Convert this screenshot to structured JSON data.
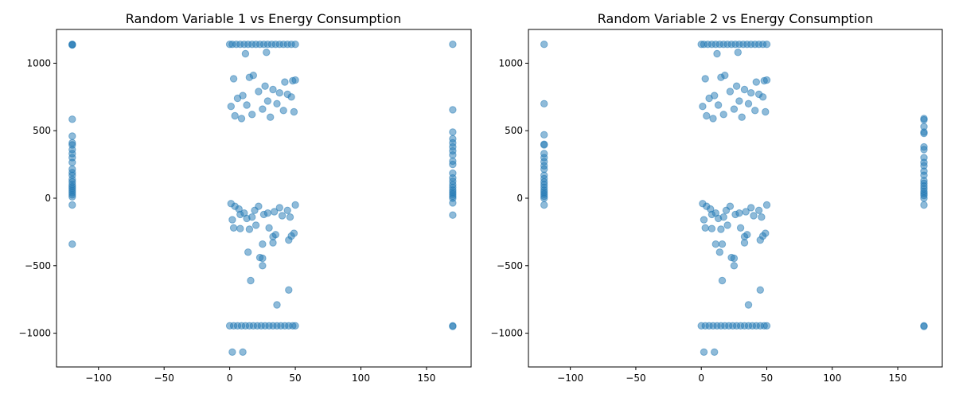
{
  "chart_data": [
    {
      "type": "scatter",
      "title": "Random Variable 1 vs Energy Consumption",
      "xlabel": "",
      "ylabel": "",
      "xlim": [
        -132,
        184
      ],
      "ylim": [
        -1250,
        1250
      ],
      "xticks": [
        -100,
        -50,
        0,
        50,
        100,
        150
      ],
      "xtick_labels": [
        "−100",
        "−50",
        "0",
        "50",
        "100",
        "150"
      ],
      "yticks": [
        -1000,
        -500,
        0,
        500,
        1000
      ],
      "ytick_labels": [
        "−1000",
        "−500",
        "0",
        "500",
        "1000"
      ],
      "grid": false,
      "marker_color": "#1f77b4",
      "marker_alpha": 0.5,
      "points": [
        [
          -120,
          1140
        ],
        [
          -120,
          1135
        ],
        [
          -120,
          1138
        ],
        [
          -120,
          585
        ],
        [
          -120,
          460
        ],
        [
          -120,
          410
        ],
        [
          -120,
          395
        ],
        [
          -120,
          360
        ],
        [
          -120,
          330
        ],
        [
          -120,
          300
        ],
        [
          -120,
          265
        ],
        [
          -120,
          215
        ],
        [
          -120,
          190
        ],
        [
          -120,
          170
        ],
        [
          -120,
          140
        ],
        [
          -120,
          120
        ],
        [
          -120,
          100
        ],
        [
          -120,
          85
        ],
        [
          -120,
          70
        ],
        [
          -120,
          55
        ],
        [
          -120,
          40
        ],
        [
          -120,
          25
        ],
        [
          -120,
          10
        ],
        [
          -120,
          -50
        ],
        [
          -120,
          -340
        ],
        [
          170,
          1140
        ],
        [
          170,
          655
        ],
        [
          170,
          490
        ],
        [
          170,
          440
        ],
        [
          170,
          410
        ],
        [
          170,
          380
        ],
        [
          170,
          350
        ],
        [
          170,
          320
        ],
        [
          170,
          275
        ],
        [
          170,
          250
        ],
        [
          170,
          185
        ],
        [
          170,
          150
        ],
        [
          170,
          125
        ],
        [
          170,
          100
        ],
        [
          170,
          80
        ],
        [
          170,
          60
        ],
        [
          170,
          45
        ],
        [
          170,
          30
        ],
        [
          170,
          15
        ],
        [
          170,
          0
        ],
        [
          170,
          -35
        ],
        [
          170,
          -125
        ],
        [
          170,
          -945
        ],
        [
          170,
          -950
        ],
        [
          0,
          1140
        ],
        [
          2,
          1140
        ],
        [
          5,
          1140
        ],
        [
          8,
          1140
        ],
        [
          11,
          1140
        ],
        [
          14,
          1140
        ],
        [
          17,
          1140
        ],
        [
          20,
          1140
        ],
        [
          23,
          1140
        ],
        [
          26,
          1140
        ],
        [
          29,
          1140
        ],
        [
          32,
          1140
        ],
        [
          35,
          1140
        ],
        [
          38,
          1140
        ],
        [
          41,
          1140
        ],
        [
          44,
          1140
        ],
        [
          47,
          1140
        ],
        [
          50,
          1140
        ],
        [
          12,
          1070
        ],
        [
          28,
          1080
        ],
        [
          0,
          -945
        ],
        [
          3,
          -945
        ],
        [
          6,
          -945
        ],
        [
          9,
          -945
        ],
        [
          12,
          -945
        ],
        [
          15,
          -945
        ],
        [
          18,
          -945
        ],
        [
          21,
          -945
        ],
        [
          24,
          -945
        ],
        [
          27,
          -945
        ],
        [
          30,
          -945
        ],
        [
          33,
          -945
        ],
        [
          36,
          -945
        ],
        [
          39,
          -945
        ],
        [
          42,
          -945
        ],
        [
          45,
          -945
        ],
        [
          48,
          -945
        ],
        [
          50,
          -945
        ],
        [
          2,
          -1140
        ],
        [
          10,
          -1140
        ],
        [
          3,
          885
        ],
        [
          18,
          910
        ],
        [
          15,
          895
        ],
        [
          42,
          860
        ],
        [
          48,
          870
        ],
        [
          50,
          875
        ],
        [
          27,
          830
        ],
        [
          33,
          805
        ],
        [
          10,
          760
        ],
        [
          38,
          780
        ],
        [
          44,
          770
        ],
        [
          6,
          740
        ],
        [
          22,
          790
        ],
        [
          47,
          750
        ],
        [
          1,
          680
        ],
        [
          29,
          720
        ],
        [
          36,
          700
        ],
        [
          13,
          690
        ],
        [
          49,
          640
        ],
        [
          4,
          610
        ],
        [
          25,
          660
        ],
        [
          41,
          650
        ],
        [
          9,
          590
        ],
        [
          31,
          600
        ],
        [
          17,
          620
        ],
        [
          20,
          -200
        ],
        [
          3,
          -220
        ],
        [
          8,
          -225
        ],
        [
          15,
          -230
        ],
        [
          30,
          -220
        ],
        [
          49,
          -260
        ],
        [
          47,
          -280
        ],
        [
          35,
          -270
        ],
        [
          33,
          -285
        ],
        [
          45,
          -310
        ],
        [
          33,
          -330
        ],
        [
          25,
          -340
        ],
        [
          14,
          -400
        ],
        [
          23,
          -440
        ],
        [
          25,
          -445
        ],
        [
          25,
          -500
        ],
        [
          16,
          -610
        ],
        [
          45,
          -680
        ],
        [
          36,
          -790
        ],
        [
          1,
          -40
        ],
        [
          4,
          -60
        ],
        [
          7,
          -80
        ],
        [
          11,
          -110
        ],
        [
          19,
          -90
        ],
        [
          26,
          -120
        ],
        [
          34,
          -100
        ],
        [
          40,
          -130
        ],
        [
          46,
          -140
        ],
        [
          2,
          -160
        ],
        [
          13,
          -150
        ],
        [
          29,
          -110
        ],
        [
          38,
          -70
        ],
        [
          50,
          -50
        ],
        [
          8,
          -120
        ],
        [
          22,
          -60
        ],
        [
          44,
          -90
        ],
        [
          17,
          -140
        ]
      ]
    },
    {
      "type": "scatter",
      "title": "Random Variable 2 vs Energy Consumption",
      "xlabel": "",
      "ylabel": "",
      "xlim": [
        -132,
        184
      ],
      "ylim": [
        -1250,
        1250
      ],
      "xticks": [
        -100,
        -50,
        0,
        50,
        100,
        150
      ],
      "xtick_labels": [
        "−100",
        "−50",
        "0",
        "50",
        "100",
        "150"
      ],
      "yticks": [
        -1000,
        -500,
        0,
        500,
        1000
      ],
      "ytick_labels": [
        "−1000",
        "−500",
        "0",
        "500",
        "1000"
      ],
      "grid": false,
      "marker_color": "#1f77b4",
      "marker_alpha": 0.5,
      "points": [
        [
          -120,
          1140
        ],
        [
          -120,
          700
        ],
        [
          -120,
          470
        ],
        [
          -120,
          400
        ],
        [
          -120,
          395
        ],
        [
          -120,
          330
        ],
        [
          -120,
          300
        ],
        [
          -120,
          270
        ],
        [
          -120,
          240
        ],
        [
          -120,
          215
        ],
        [
          -120,
          170
        ],
        [
          -120,
          145
        ],
        [
          -120,
          120
        ],
        [
          -120,
          100
        ],
        [
          -120,
          80
        ],
        [
          -120,
          60
        ],
        [
          -120,
          45
        ],
        [
          -120,
          30
        ],
        [
          -120,
          15
        ],
        [
          -120,
          0
        ],
        [
          -120,
          -50
        ],
        [
          170,
          590
        ],
        [
          170,
          580
        ],
        [
          170,
          530
        ],
        [
          170,
          490
        ],
        [
          170,
          480
        ],
        [
          170,
          380
        ],
        [
          170,
          360
        ],
        [
          170,
          300
        ],
        [
          170,
          265
        ],
        [
          170,
          240
        ],
        [
          170,
          200
        ],
        [
          170,
          170
        ],
        [
          170,
          130
        ],
        [
          170,
          110
        ],
        [
          170,
          90
        ],
        [
          170,
          70
        ],
        [
          170,
          50
        ],
        [
          170,
          35
        ],
        [
          170,
          20
        ],
        [
          170,
          0
        ],
        [
          170,
          -50
        ],
        [
          170,
          -945
        ],
        [
          170,
          -950
        ],
        [
          0,
          1140
        ],
        [
          2,
          1140
        ],
        [
          5,
          1140
        ],
        [
          8,
          1140
        ],
        [
          11,
          1140
        ],
        [
          14,
          1140
        ],
        [
          17,
          1140
        ],
        [
          20,
          1140
        ],
        [
          23,
          1140
        ],
        [
          26,
          1140
        ],
        [
          29,
          1140
        ],
        [
          32,
          1140
        ],
        [
          35,
          1140
        ],
        [
          38,
          1140
        ],
        [
          41,
          1140
        ],
        [
          44,
          1140
        ],
        [
          47,
          1140
        ],
        [
          50,
          1140
        ],
        [
          12,
          1070
        ],
        [
          28,
          1080
        ],
        [
          0,
          -945
        ],
        [
          3,
          -945
        ],
        [
          6,
          -945
        ],
        [
          9,
          -945
        ],
        [
          12,
          -945
        ],
        [
          15,
          -945
        ],
        [
          18,
          -945
        ],
        [
          21,
          -945
        ],
        [
          24,
          -945
        ],
        [
          27,
          -945
        ],
        [
          30,
          -945
        ],
        [
          33,
          -945
        ],
        [
          36,
          -945
        ],
        [
          39,
          -945
        ],
        [
          42,
          -945
        ],
        [
          45,
          -945
        ],
        [
          48,
          -945
        ],
        [
          50,
          -945
        ],
        [
          2,
          -1140
        ],
        [
          10,
          -1140
        ],
        [
          3,
          885
        ],
        [
          18,
          910
        ],
        [
          15,
          895
        ],
        [
          42,
          860
        ],
        [
          48,
          870
        ],
        [
          50,
          875
        ],
        [
          27,
          830
        ],
        [
          33,
          805
        ],
        [
          10,
          760
        ],
        [
          38,
          780
        ],
        [
          44,
          770
        ],
        [
          6,
          740
        ],
        [
          22,
          790
        ],
        [
          47,
          750
        ],
        [
          1,
          680
        ],
        [
          29,
          720
        ],
        [
          36,
          700
        ],
        [
          13,
          690
        ],
        [
          49,
          640
        ],
        [
          4,
          610
        ],
        [
          25,
          660
        ],
        [
          41,
          650
        ],
        [
          9,
          590
        ],
        [
          31,
          600
        ],
        [
          17,
          620
        ],
        [
          20,
          -200
        ],
        [
          3,
          -220
        ],
        [
          8,
          -225
        ],
        [
          15,
          -230
        ],
        [
          30,
          -220
        ],
        [
          49,
          -260
        ],
        [
          47,
          -280
        ],
        [
          35,
          -270
        ],
        [
          33,
          -285
        ],
        [
          45,
          -310
        ],
        [
          33,
          -330
        ],
        [
          11,
          -340
        ],
        [
          16,
          -340
        ],
        [
          14,
          -400
        ],
        [
          23,
          -440
        ],
        [
          25,
          -445
        ],
        [
          25,
          -500
        ],
        [
          16,
          -610
        ],
        [
          45,
          -680
        ],
        [
          36,
          -790
        ],
        [
          1,
          -40
        ],
        [
          4,
          -60
        ],
        [
          7,
          -80
        ],
        [
          11,
          -110
        ],
        [
          19,
          -90
        ],
        [
          26,
          -120
        ],
        [
          34,
          -100
        ],
        [
          40,
          -130
        ],
        [
          46,
          -140
        ],
        [
          2,
          -160
        ],
        [
          13,
          -150
        ],
        [
          29,
          -110
        ],
        [
          38,
          -70
        ],
        [
          50,
          -50
        ],
        [
          8,
          -120
        ],
        [
          22,
          -60
        ],
        [
          44,
          -90
        ],
        [
          17,
          -140
        ]
      ]
    }
  ]
}
